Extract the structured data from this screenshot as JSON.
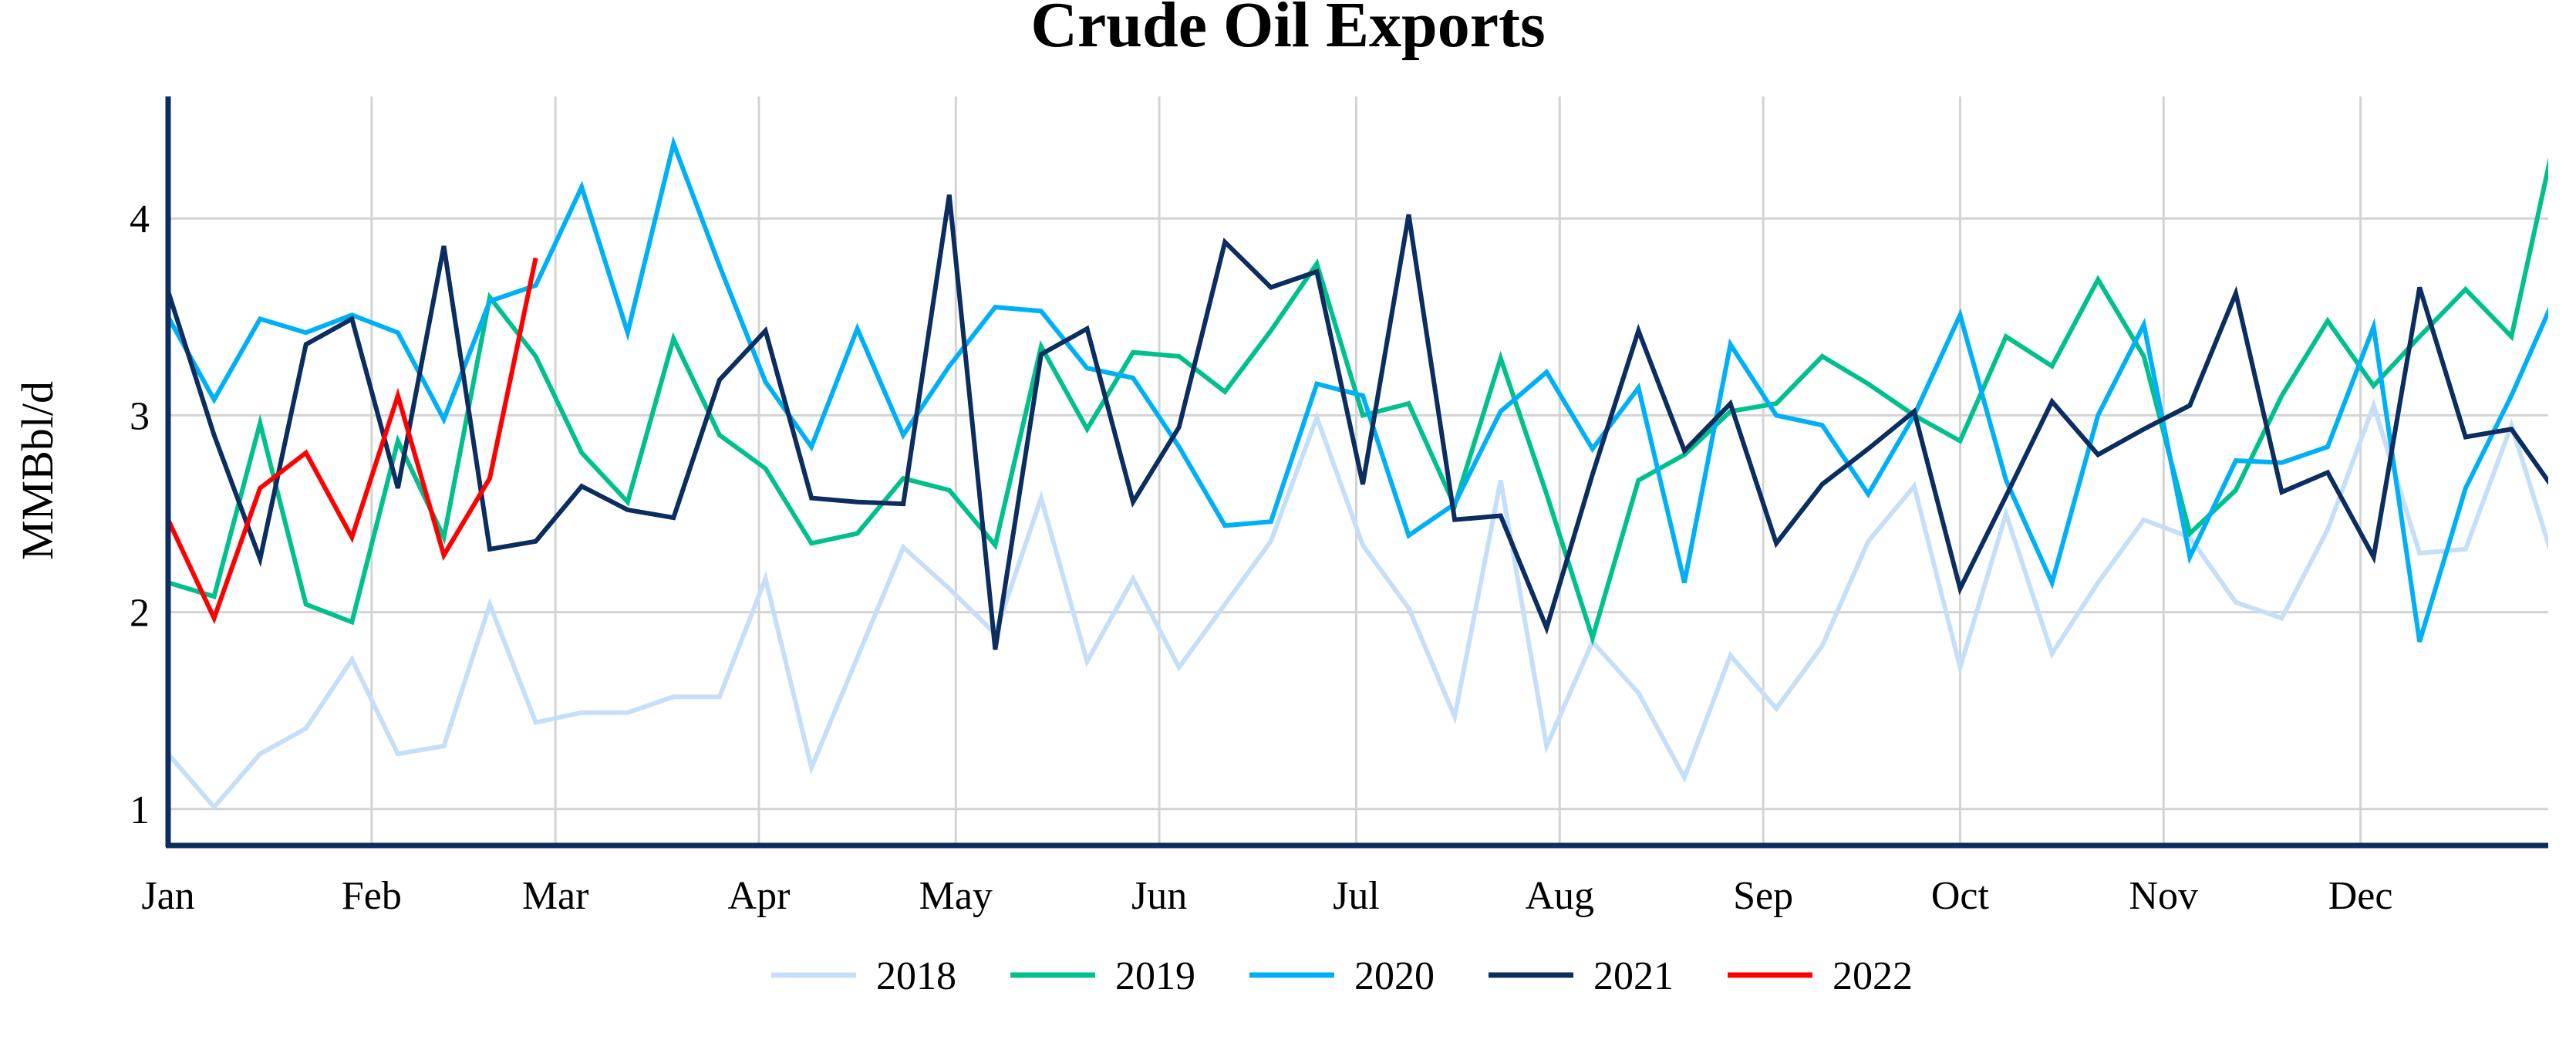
{
  "chart_data": {
    "type": "line",
    "title": "Crude Oil Exports",
    "xlabel": "",
    "ylabel": "MMBbl/d",
    "ylim": [
      0.815,
      4.62
    ],
    "yticks": [
      1,
      2,
      3,
      4
    ],
    "x_unit": "week of year (weekly points)",
    "xlim_days": [
      0,
      362.6
    ],
    "xticks": [
      {
        "label": "Jan",
        "day": 0
      },
      {
        "label": "Feb",
        "day": 31
      },
      {
        "label": "Mar",
        "day": 59
      },
      {
        "label": "Apr",
        "day": 90
      },
      {
        "label": "May",
        "day": 120
      },
      {
        "label": "Jun",
        "day": 151
      },
      {
        "label": "Jul",
        "day": 181
      },
      {
        "label": "Aug",
        "day": 212
      },
      {
        "label": "Sep",
        "day": 243
      },
      {
        "label": "Oct",
        "day": 273
      },
      {
        "label": "Nov",
        "day": 304
      },
      {
        "label": "Dec",
        "day": 334
      }
    ],
    "grid": true,
    "legend_position": "bottom-center",
    "series": [
      {
        "name": "2018",
        "color": "#c5dff8",
        "values": [
          1.28,
          1.01,
          1.28,
          1.41,
          1.76,
          1.28,
          1.32,
          2.04,
          1.44,
          1.49,
          1.49,
          1.57,
          1.57,
          2.17,
          1.21,
          1.77,
          2.33,
          2.12,
          1.89,
          2.58,
          1.75,
          2.17,
          1.72,
          2.04,
          2.36,
          2.99,
          2.34,
          2.02,
          1.47,
          2.67,
          1.32,
          1.85,
          1.59,
          1.16,
          1.78,
          1.51,
          1.83,
          2.36,
          2.64,
          1.72,
          2.5,
          1.79,
          2.15,
          2.47,
          2.38,
          2.05,
          1.97,
          2.42,
          3.05,
          2.3,
          2.32,
          2.95,
          2.2
        ]
      },
      {
        "name": "2019",
        "color": "#00c08b",
        "values": [
          2.15,
          2.08,
          2.96,
          2.04,
          1.95,
          2.87,
          2.38,
          3.6,
          3.3,
          2.81,
          2.56,
          3.39,
          2.9,
          2.73,
          2.35,
          2.4,
          2.68,
          2.62,
          2.34,
          3.35,
          2.93,
          3.32,
          3.3,
          3.12,
          3.43,
          3.77,
          3.0,
          3.06,
          2.54,
          3.29,
          2.6,
          1.87,
          2.67,
          2.8,
          3.02,
          3.06,
          3.3,
          3.16,
          3.0,
          2.87,
          3.4,
          3.25,
          3.69,
          3.3,
          2.4,
          2.62,
          3.1,
          3.48,
          3.15,
          3.4,
          3.64,
          3.4,
          4.47,
          3.8
        ]
      },
      {
        "name": "2020",
        "color": "#00b0f6",
        "values": [
          3.5,
          3.08,
          3.49,
          3.42,
          3.51,
          3.42,
          2.98,
          3.58,
          3.66,
          4.16,
          3.42,
          4.38,
          3.76,
          3.17,
          2.84,
          3.44,
          2.9,
          3.25,
          3.55,
          3.53,
          3.24,
          3.19,
          2.84,
          2.44,
          2.46,
          3.16,
          3.1,
          2.39,
          2.55,
          3.02,
          3.22,
          2.83,
          3.14,
          2.15,
          3.36,
          3.0,
          2.95,
          2.6,
          3.0,
          3.51,
          2.67,
          2.15,
          3.0,
          3.46,
          2.28,
          2.77,
          2.76,
          2.84,
          3.45,
          1.85,
          2.63,
          3.1,
          3.63,
          3.63
        ]
      },
      {
        "name": "2021",
        "color": "#0b2d5f",
        "values": [
          3.63,
          2.9,
          2.27,
          3.36,
          3.49,
          2.63,
          3.86,
          2.32,
          2.36,
          2.64,
          2.52,
          2.48,
          3.18,
          3.43,
          2.58,
          2.56,
          2.55,
          4.12,
          1.81,
          3.31,
          3.44,
          2.56,
          2.94,
          3.88,
          3.65,
          3.73,
          2.65,
          4.02,
          2.47,
          2.49,
          1.92,
          2.7,
          3.43,
          2.82,
          3.06,
          2.35,
          2.65,
          2.83,
          3.02,
          2.12,
          2.59,
          3.07,
          2.8,
          2.93,
          3.05,
          3.62,
          2.61,
          2.71,
          2.28,
          3.65,
          2.89,
          2.93,
          2.6
        ]
      },
      {
        "name": "2022",
        "color": "#ff0000",
        "values": [
          2.47,
          1.97,
          2.63,
          2.81,
          2.38,
          3.1,
          2.29,
          2.68,
          3.8
        ]
      }
    ]
  },
  "axis_color": "#0b2d5f",
  "grid_color": "#d3d3d3"
}
